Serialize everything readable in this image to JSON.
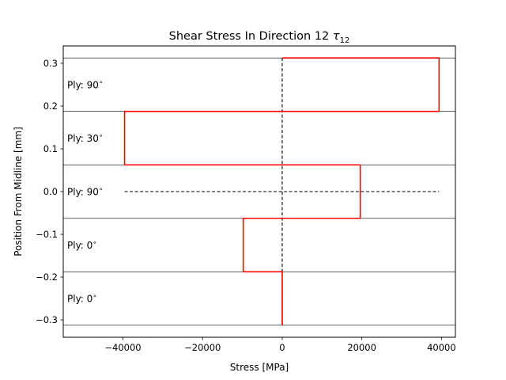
{
  "chart_data": {
    "type": "line",
    "title": "Shear Stress In Direction 12",
    "title_symbol": "τ",
    "title_subscript": "12",
    "xlabel": "Stress [MPa]",
    "ylabel": "Position From Midline [mm]",
    "xlim": [
      -55000,
      43500
    ],
    "ylim": [
      -0.3406,
      0.3406
    ],
    "xticks": [
      {
        "value": -40000,
        "label": "−40000"
      },
      {
        "value": -20000,
        "label": "−20000"
      },
      {
        "value": 0,
        "label": "0"
      },
      {
        "value": 20000,
        "label": "20000"
      },
      {
        "value": 40000,
        "label": "40000"
      }
    ],
    "yticks": [
      {
        "value": 0.3,
        "label": "0.3"
      },
      {
        "value": 0.2,
        "label": "0.2"
      },
      {
        "value": 0.1,
        "label": "0.1"
      },
      {
        "value": 0.0,
        "label": "0.0"
      },
      {
        "value": -0.1,
        "label": "−0.1"
      },
      {
        "value": -0.2,
        "label": "−0.2"
      },
      {
        "value": -0.3,
        "label": "−0.3"
      }
    ],
    "ply_boundaries": [
      0.3125,
      0.1875,
      0.0625,
      -0.0625,
      -0.1875,
      -0.3125
    ],
    "ply_labels": [
      {
        "text": "Ply: 90",
        "y": 0.25
      },
      {
        "text": "Ply: 30",
        "y": 0.125
      },
      {
        "text": "Ply: 90",
        "y": 0.0
      },
      {
        "text": "Ply: 0",
        "y": -0.125
      },
      {
        "text": "Ply: 0",
        "y": -0.25
      }
    ],
    "degree_symbol": "∘",
    "stress_profile": {
      "color": "#ff0000",
      "points": [
        [
          0,
          0.3125
        ],
        [
          39400,
          0.3125
        ],
        [
          39400,
          0.1875
        ],
        [
          -39600,
          0.1875
        ],
        [
          -39600,
          0.0625
        ],
        [
          19600,
          0.0625
        ],
        [
          19600,
          -0.0625
        ],
        [
          -9800,
          -0.0625
        ],
        [
          -9800,
          -0.1875
        ],
        [
          0,
          -0.1875
        ],
        [
          0,
          -0.3125
        ]
      ]
    },
    "reference_lines": [
      {
        "points": [
          [
            0,
            0.3125
          ],
          [
            0,
            -0.3125
          ]
        ],
        "style": "dashed"
      },
      {
        "points": [
          [
            -39600,
            0.0
          ],
          [
            39400,
            0.0
          ]
        ],
        "style": "dashed"
      }
    ],
    "grid": false,
    "legend": "none"
  }
}
